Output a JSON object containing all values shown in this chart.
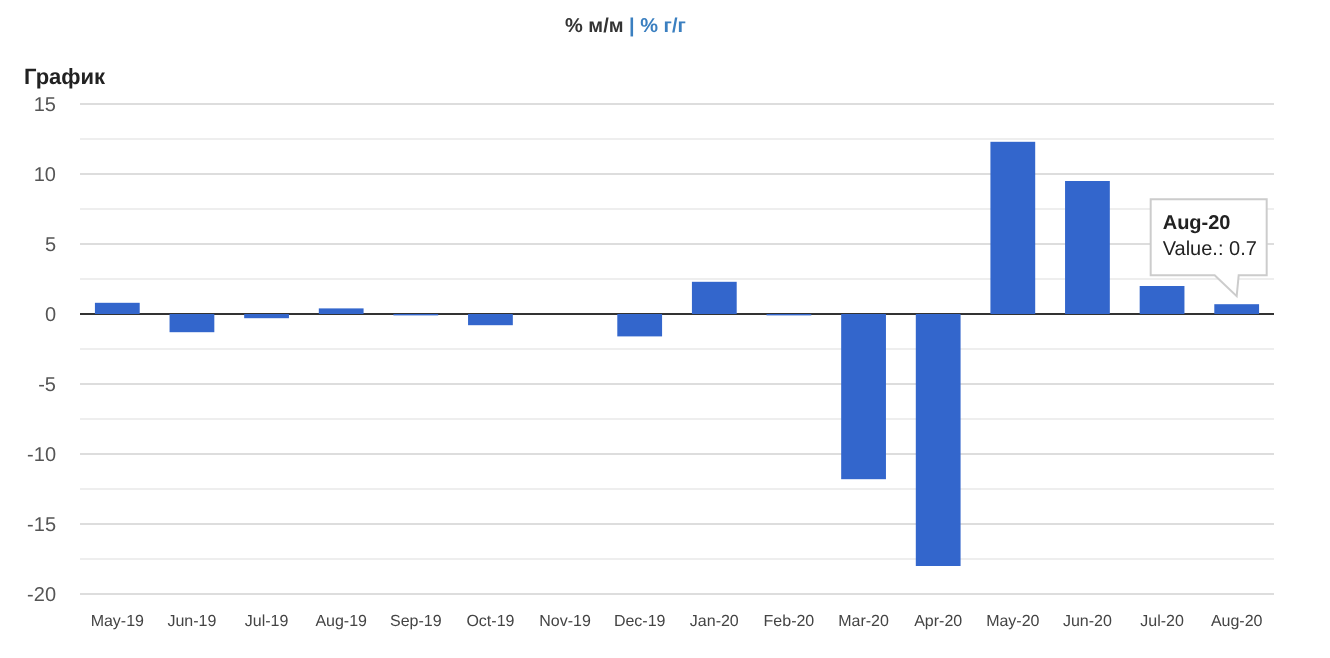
{
  "chart_data": {
    "type": "bar",
    "title": "График",
    "subtitle": "% м/м | % г/г",
    "categories": [
      "May-19",
      "Jun-19",
      "Jul-19",
      "Aug-19",
      "Sep-19",
      "Oct-19",
      "Nov-19",
      "Dec-19",
      "Jan-20",
      "Feb-20",
      "Mar-20",
      "Apr-20",
      "May-20",
      "Jun-20",
      "Jul-20",
      "Aug-20"
    ],
    "values": [
      0.8,
      -1.3,
      -0.3,
      0.4,
      -0.1,
      -0.8,
      0,
      -1.6,
      2.3,
      -0.1,
      -11.8,
      -18,
      12.3,
      9.5,
      2,
      0.7
    ],
    "color": "#3366cc",
    "ylim": [
      -20,
      15
    ],
    "yticks": [
      -20,
      {
        "value": -17.5,
        "label": null
      },
      -15,
      {
        "value": -12.5,
        "label": null
      },
      -10,
      {
        "value": -7.5,
        "label": null
      },
      -5,
      {
        "value": -2.5,
        "label": null
      },
      0,
      {
        "value": 2.5,
        "label": null
      },
      5,
      {
        "value": 7.5,
        "label": null
      },
      10,
      {
        "value": 12.5,
        "label": null
      },
      15
    ],
    "grid": "y",
    "annotations": [
      {
        "text": "Aug-20\nValue.: 0.7",
        "x": "Aug-20",
        "y": 0.7
      }
    ]
  }
}
